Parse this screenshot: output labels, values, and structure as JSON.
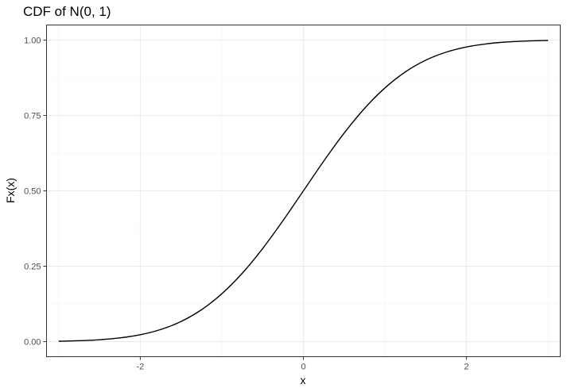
{
  "chart_data": {
    "type": "line",
    "title": "CDF of N(0, 1)",
    "xlabel": "x",
    "ylabel": "Fx(x)",
    "xlim": [
      -3.15,
      3.15
    ],
    "ylim": [
      -0.05,
      1.05
    ],
    "x_ticks": [
      -2,
      0,
      2
    ],
    "x_tick_labels": [
      "-2",
      "0",
      "2"
    ],
    "y_ticks": [
      0,
      0.25,
      0.5,
      0.75,
      1
    ],
    "y_tick_labels": [
      "0.00",
      "0.25",
      "0.50",
      "0.75",
      "1.00"
    ],
    "grid": true,
    "legend": "none",
    "series": [
      {
        "color": "#000000",
        "x": [
          -3.0,
          -2.75,
          -2.5,
          -2.25,
          -2.0,
          -1.75,
          -1.5,
          -1.25,
          -1.0,
          -0.75,
          -0.5,
          -0.25,
          0.0,
          0.25,
          0.5,
          0.75,
          1.0,
          1.25,
          1.5,
          1.75,
          2.0,
          2.25,
          2.5,
          2.75,
          3.0
        ],
        "y": [
          0.0013,
          0.003,
          0.0062,
          0.0122,
          0.0228,
          0.0401,
          0.0668,
          0.1056,
          0.1587,
          0.2266,
          0.3085,
          0.4013,
          0.5,
          0.5987,
          0.6915,
          0.7734,
          0.8413,
          0.8944,
          0.9332,
          0.9599,
          0.9772,
          0.9878,
          0.9938,
          0.997,
          0.9987
        ]
      }
    ]
  }
}
